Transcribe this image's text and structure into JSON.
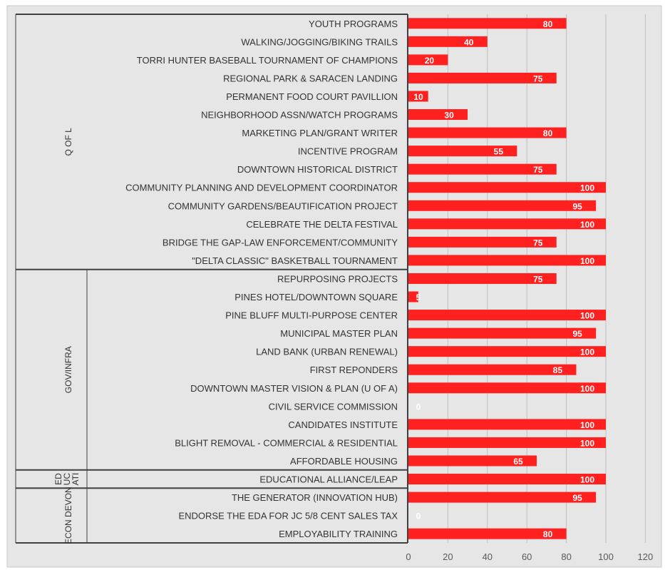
{
  "chart_data": {
    "type": "bar",
    "orientation": "horizontal",
    "title": "",
    "xlabel": "",
    "ylabel": "",
    "xlim": [
      0,
      120
    ],
    "x_ticks": [
      "0",
      "20",
      "40",
      "60",
      "80",
      "100",
      "120"
    ],
    "grid": true,
    "legend": "none",
    "bar_color": "#ff2020",
    "background_color": "#e6e6e6",
    "groups": [
      {
        "label": "Q OF L",
        "start": 0,
        "end": 13
      },
      {
        "label": "GOV/INFRA",
        "start": 14,
        "end": 24
      },
      {
        "label": "ED UC ATI",
        "start": 25,
        "end": 25
      },
      {
        "label": "ECON DEVON",
        "start": 26,
        "end": 28
      }
    ],
    "categories": [
      "YOUTH PROGRAMS",
      "WALKING/JOGGING/BIKING TRAILS",
      "TORRI HUNTER BASEBALL TOURNAMENT OF CHAMPIONS",
      "REGIONAL PARK & SARACEN LANDING",
      "PERMANENT FOOD COURT PAVILLION",
      "NEIGHBORHOOD ASSN/WATCH PROGRAMS",
      "MARKETING PLAN/GRANT WRITER",
      "INCENTIVE PROGRAM",
      "DOWNTOWN HISTORICAL DISTRICT",
      "COMMUNITY PLANNING AND DEVELOPMENT COORDINATOR",
      "COMMUNITY GARDENS/BEAUTIFICATION PROJECT",
      "CELEBRATE THE DELTA FESTIVAL",
      "BRIDGE THE GAP-LAW ENFORCEMENT/COMMUNITY",
      "\"DELTA CLASSIC\" BASKETBALL TOURNAMENT",
      "REPURPOSING PROJECTS",
      "PINES HOTEL/DOWNTOWN SQUARE",
      "PINE BLUFF MULTI-PURPOSE CENTER",
      "MUNICIPAL MASTER PLAN",
      "LAND BANK (URBAN RENEWAL)",
      "FIRST REPONDERS",
      "DOWNTOWN MASTER VISION & PLAN (U OF A)",
      "CIVIL SERVICE COMMISSION",
      "CANDIDATES INSTITUTE",
      "BLIGHT REMOVAL - COMMERCIAL & RESIDENTIAL",
      "AFFORDABLE HOUSING",
      "EDUCATIONAL ALLIANCE/LEAP",
      "THE GENERATOR (INNOVATION HUB)",
      "ENDORSE THE EDA FOR JC 5/8 CENT SALES TAX",
      "EMPLOYABILITY TRAINING"
    ],
    "values": [
      80,
      40,
      20,
      75,
      10,
      30,
      80,
      55,
      75,
      100,
      95,
      100,
      75,
      100,
      75,
      5,
      100,
      95,
      100,
      85,
      100,
      0,
      100,
      100,
      65,
      100,
      95,
      0,
      80
    ]
  }
}
